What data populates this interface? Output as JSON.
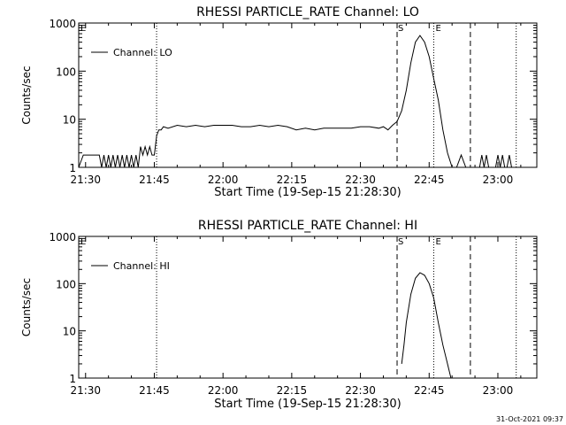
{
  "footer": {
    "timestamp": "31-Oct-2021 09:37"
  },
  "chart_data": [
    {
      "type": "line",
      "title": "RHESSI PARTICLE_RATE Channel: LO",
      "xlabel": "Start Time (19-Sep-15 21:28:30)",
      "ylabel": "Counts/sec",
      "yscale": "log",
      "xlim": [
        "21:28:30",
        "23:08:30"
      ],
      "ylim": [
        1,
        1000
      ],
      "xticks": [
        "21:30",
        "21:45",
        "22:00",
        "22:15",
        "22:30",
        "22:45",
        "23:00"
      ],
      "yticks": [
        "1",
        "10",
        "100",
        "1000"
      ],
      "legend": {
        "position": "top-left",
        "entries": [
          "Channel: LO"
        ]
      },
      "markers": {
        "start_label": "S",
        "end_label": "E"
      },
      "dotted_lines_at": [
        "21:45:30",
        "22:46:00",
        "23:04:00"
      ],
      "dashed_lines_at": [
        "22:38:00",
        "22:54:00"
      ],
      "series": [
        {
          "name": "Channel: LO",
          "x": [
            "21:28:30",
            "21:29:30",
            "21:30:00",
            "21:31:00",
            "21:32:00",
            "21:33:00",
            "21:33:30",
            "21:34:00",
            "21:34:30",
            "21:35:00",
            "21:35:30",
            "21:36:00",
            "21:36:30",
            "21:37:00",
            "21:37:30",
            "21:38:00",
            "21:38:30",
            "21:39:00",
            "21:39:30",
            "21:40:00",
            "21:40:30",
            "21:41:00",
            "21:41:30",
            "21:42:00",
            "21:42:30",
            "21:43:00",
            "21:43:30",
            "21:44:00",
            "21:44:30",
            "21:45:00",
            "21:45:30",
            "21:46:00",
            "21:46:30",
            "21:47:00",
            "21:48:00",
            "21:50:00",
            "21:52:00",
            "21:54:00",
            "21:56:00",
            "21:58:00",
            "22:00:00",
            "22:02:00",
            "22:04:00",
            "22:06:00",
            "22:08:00",
            "22:10:00",
            "22:12:00",
            "22:14:00",
            "22:16:00",
            "22:18:00",
            "22:20:00",
            "22:22:00",
            "22:24:00",
            "22:26:00",
            "22:28:00",
            "22:30:00",
            "22:32:00",
            "22:34:00",
            "22:35:00",
            "22:36:00",
            "22:37:00",
            "22:38:00",
            "22:39:00",
            "22:40:00",
            "22:41:00",
            "22:42:00",
            "22:43:00",
            "22:44:00",
            "22:45:00",
            "22:46:00",
            "22:47:00",
            "22:48:00",
            "22:49:00",
            "22:50:00",
            "22:51:00",
            "22:52:00",
            "22:53:00",
            "22:53:30",
            "22:54:00",
            "22:54:30",
            "22:55:00",
            "22:55:30",
            "22:56:00",
            "22:56:30",
            "22:57:00",
            "22:57:30",
            "22:58:00",
            "22:58:30",
            "22:59:00",
            "22:59:30",
            "23:00:00",
            "23:00:30",
            "23:01:00",
            "23:01:30",
            "23:02:00",
            "23:02:30",
            "23:03:00"
          ],
          "values": [
            1,
            1.8,
            1.8,
            1.8,
            1.8,
            1.8,
            1,
            1.8,
            1,
            1.8,
            1,
            1.8,
            1,
            1.8,
            1,
            1.8,
            1,
            1.8,
            1,
            1.8,
            1,
            1.8,
            1,
            2.7,
            1.8,
            2.7,
            1.8,
            2.7,
            1.8,
            1.8,
            4.5,
            6,
            6,
            7,
            6.5,
            7.5,
            7,
            7.5,
            7,
            7.5,
            7.5,
            7.5,
            7,
            7,
            7.5,
            7,
            7.5,
            7,
            6,
            6.5,
            6,
            6.5,
            6.5,
            6.5,
            6.5,
            7,
            7,
            6.5,
            7,
            6,
            7.5,
            9,
            15,
            40,
            150,
            400,
            550,
            400,
            200,
            70,
            25,
            6,
            2,
            1,
            1,
            1.8,
            1,
            1,
            1,
            1,
            1,
            1,
            1,
            1.8,
            1,
            1.8,
            1,
            1,
            1,
            1,
            1.8,
            1,
            1.8,
            1,
            1,
            1.8,
            1
          ]
        }
      ]
    },
    {
      "type": "line",
      "title": "RHESSI PARTICLE_RATE Channel: HI",
      "xlabel": "Start Time (19-Sep-15 21:28:30)",
      "ylabel": "Counts/sec",
      "yscale": "log",
      "xlim": [
        "21:28:30",
        "23:08:30"
      ],
      "ylim": [
        1,
        1000
      ],
      "xticks": [
        "21:30",
        "21:45",
        "22:00",
        "22:15",
        "22:30",
        "22:45",
        "23:00"
      ],
      "yticks": [
        "1",
        "10",
        "100",
        "1000"
      ],
      "legend": {
        "position": "top-left",
        "entries": [
          "Channel: HI"
        ]
      },
      "markers": {
        "start_label": "S",
        "end_label": "E"
      },
      "dotted_lines_at": [
        "21:45:30",
        "22:46:00",
        "23:04:00"
      ],
      "dashed_lines_at": [
        "22:38:00",
        "22:54:00"
      ],
      "series": [
        {
          "name": "Channel: HI",
          "x": [
            "22:39:00",
            "22:39:30",
            "22:40:00",
            "22:41:00",
            "22:42:00",
            "22:43:00",
            "22:44:00",
            "22:45:00",
            "22:46:00",
            "22:47:00",
            "22:48:00",
            "22:49:00",
            "22:49:45"
          ],
          "values": [
            2,
            5,
            15,
            60,
            130,
            170,
            150,
            100,
            50,
            15,
            5,
            2,
            1
          ]
        }
      ]
    }
  ]
}
